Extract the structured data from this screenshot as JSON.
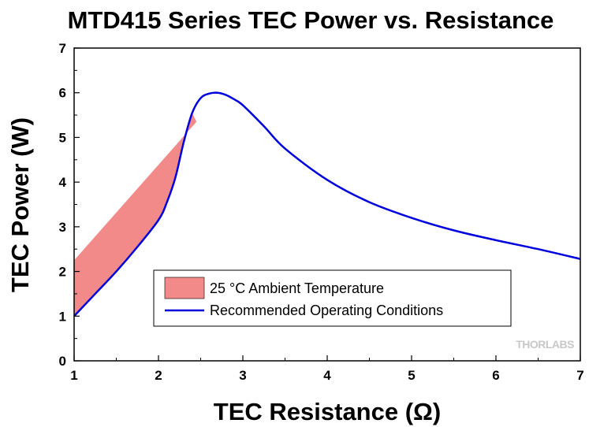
{
  "chart_data": {
    "type": "line",
    "title": "MTD415 Series TEC Power vs. Resistance",
    "xlabel": "TEC Resistance (Ω)",
    "ylabel": "TEC Power (W)",
    "xlim": [
      1,
      7
    ],
    "ylim": [
      0,
      7
    ],
    "xticks": [
      1,
      2,
      3,
      4,
      5,
      6,
      7
    ],
    "yticks": [
      0,
      1,
      2,
      3,
      4,
      5,
      6,
      7
    ],
    "grid": false,
    "legend_position": "lower-center",
    "watermark": "THORLABS",
    "series": [
      {
        "name": "Recommended Operating Conditions",
        "color": "#0000dd",
        "x": [
          1.0,
          1.25,
          1.5,
          1.75,
          2.0,
          2.1,
          2.2,
          2.3,
          2.4,
          2.5,
          2.6,
          2.7,
          2.8,
          2.9,
          3.0,
          3.25,
          3.5,
          4.0,
          4.5,
          5.0,
          5.5,
          6.0,
          6.5,
          7.0
        ],
        "y": [
          1.0,
          1.5,
          2.0,
          2.55,
          3.15,
          3.55,
          4.1,
          4.9,
          5.55,
          5.88,
          5.98,
          6.0,
          5.95,
          5.85,
          5.72,
          5.25,
          4.75,
          4.05,
          3.55,
          3.2,
          2.92,
          2.7,
          2.5,
          2.28
        ]
      }
    ],
    "bands": [
      {
        "name": "25 °C Ambient Temperature",
        "color": "#f28a8a",
        "upper": {
          "x": [
            1.0,
            2.45
          ],
          "y": [
            2.25,
            5.35
          ]
        }
      }
    ]
  }
}
